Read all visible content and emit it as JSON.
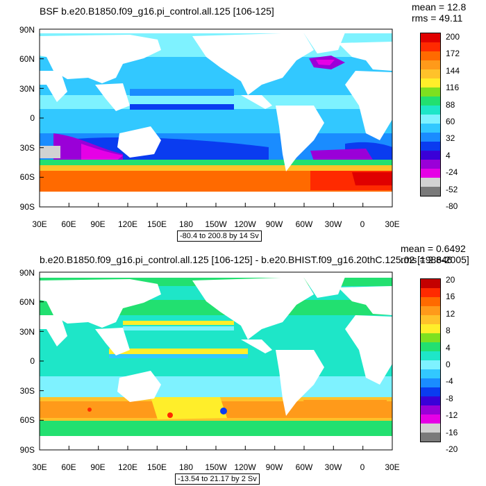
{
  "top": {
    "title": "BSF b.e20.B1850.f09_g16.pi_control.all.125 [106-125]",
    "mean": "mean = 12.8",
    "rms": "rms = 49.11",
    "range": "-80.4 to 200.8 by 14 Sv",
    "colorbar_labels": [
      "200",
      "172",
      "144",
      "116",
      "88",
      "60",
      "32",
      "4",
      "-24",
      "-52",
      "-80"
    ],
    "colorbar_colors": [
      "#e00000",
      "#ff2a00",
      "#ff6a00",
      "#ff9a1a",
      "#ffc22a",
      "#ffee2a",
      "#7ee020",
      "#22e070",
      "#1ee6c8",
      "#7ef2ff",
      "#32c8ff",
      "#1a8cff",
      "#0a3cf0",
      "#3a00d8",
      "#9a00d8",
      "#e600e6",
      "#d2d2d2",
      "#7a7a7a"
    ]
  },
  "bottom": {
    "title": "b.e20.B1850.f09_g16.pi_control.all.125 [106-125] - b.e20.BHIST.f09_g16.20thC.125.02 [1986-2005]",
    "mean": "mean = 0.6492",
    "rms": "rms = 2.846",
    "range": "-13.54 to 21.17 by 2 Sv",
    "colorbar_labels": [
      "20",
      "16",
      "12",
      "8",
      "4",
      "0",
      "-4",
      "-8",
      "-12",
      "-16",
      "-20"
    ],
    "colorbar_colors": [
      "#c40000",
      "#ff2a00",
      "#ff6a00",
      "#ff9a1a",
      "#ffc22a",
      "#ffee2a",
      "#7ee020",
      "#22e070",
      "#1ee6c8",
      "#7ef2ff",
      "#32c8ff",
      "#1a8cff",
      "#0a3cf0",
      "#3a00d8",
      "#9a00d8",
      "#e600e6",
      "#d2d2d2",
      "#7a7a7a"
    ]
  },
  "lat_labels": [
    "90N",
    "60N",
    "30N",
    "0",
    "30S",
    "60S",
    "90S"
  ],
  "lon_labels": [
    "30E",
    "60E",
    "90E",
    "120E",
    "150E",
    "180",
    "150W",
    "120W",
    "90W",
    "60W",
    "30W",
    "0",
    "30E"
  ]
}
